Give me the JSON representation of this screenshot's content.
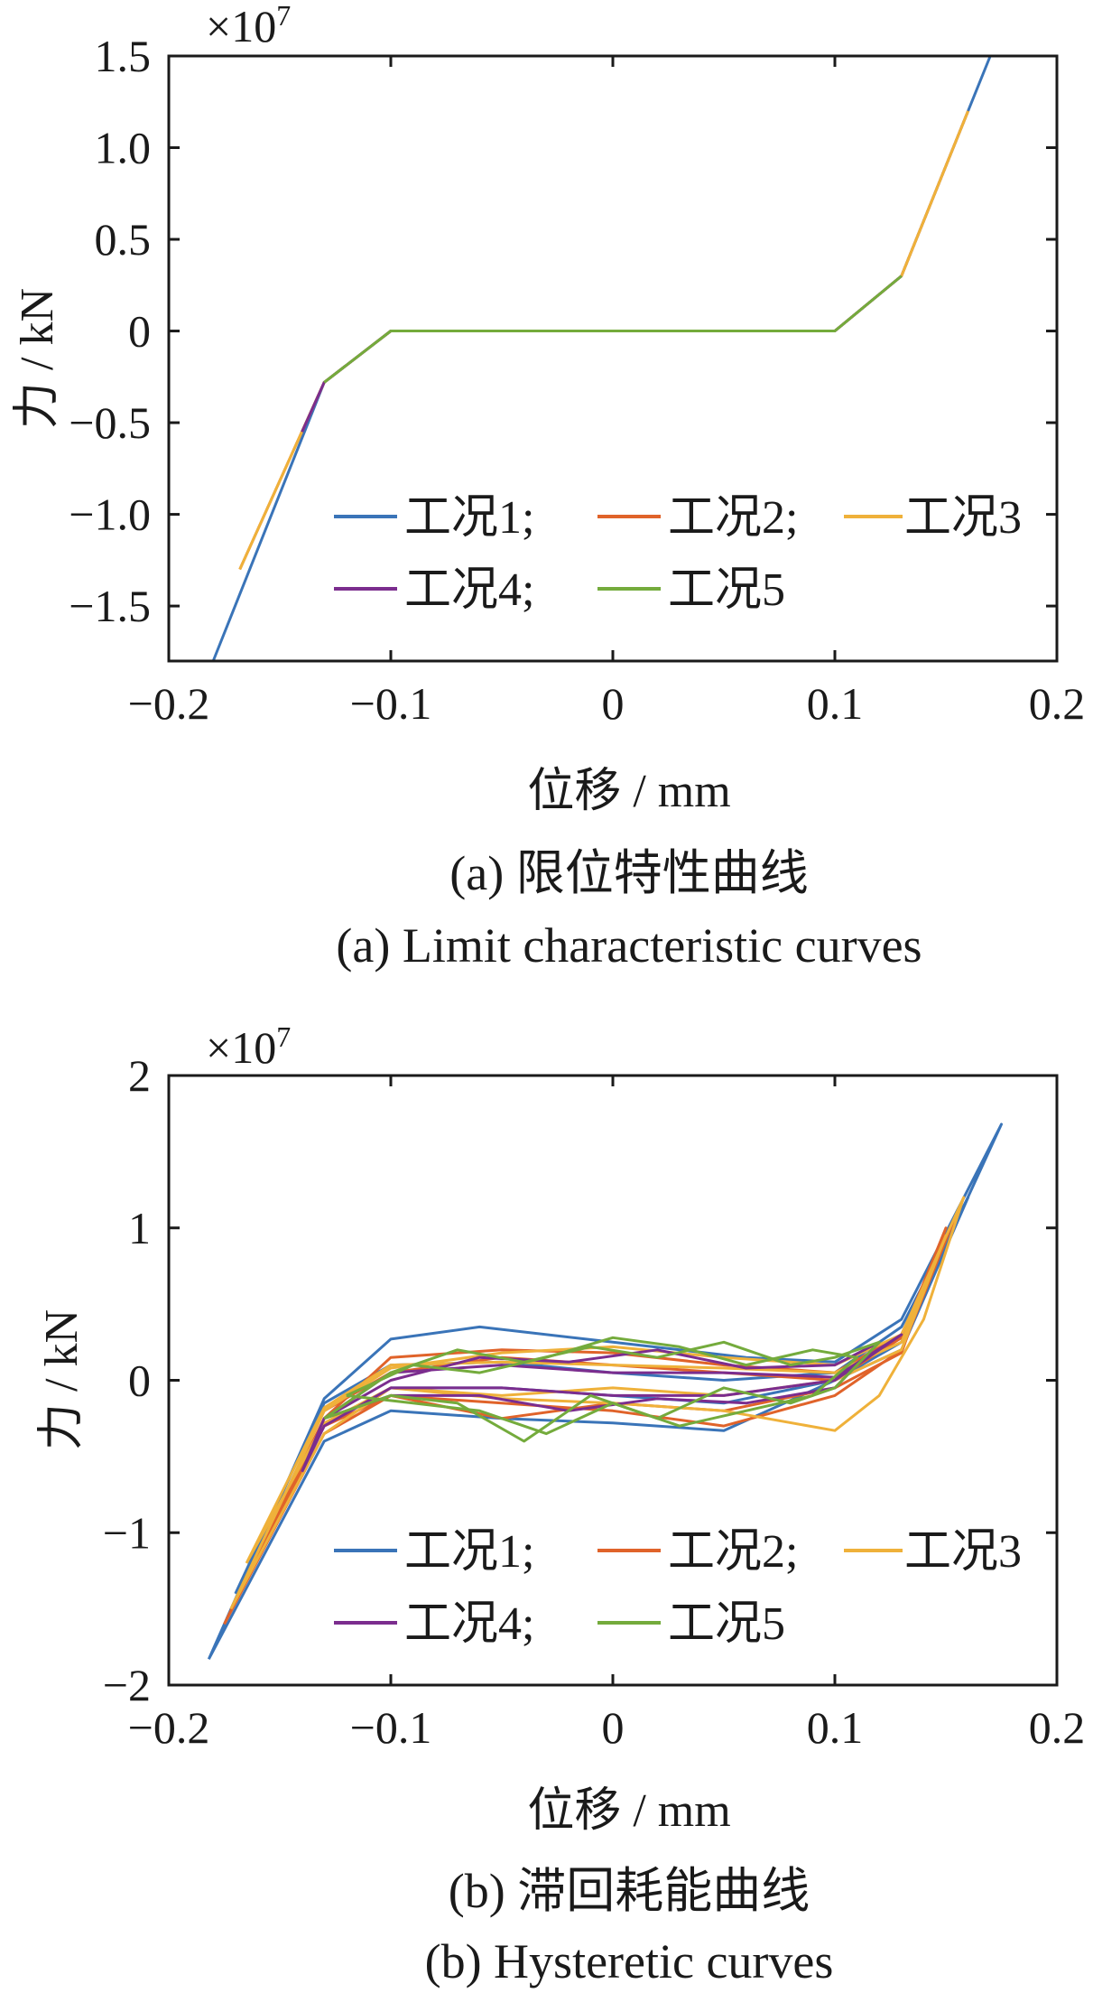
{
  "chart_data": [
    {
      "type": "line",
      "panel": "a",
      "xlabel": "位移 / mm",
      "ylabel": "力 / kN",
      "exponent_label": "×10",
      "exponent_power": "7",
      "xlim": [
        -0.2,
        0.2
      ],
      "ylim": [
        -1.8,
        1.5
      ],
      "x_ticks": [
        "−0.2",
        "−0.1",
        "0",
        "0.1",
        "0.2"
      ],
      "y_ticks": [
        "1.5",
        "1.0",
        "0.5",
        "0",
        "−0.5",
        "−1.0",
        "−1.5"
      ],
      "x_tick_values": [
        -0.2,
        -0.1,
        0,
        0.1,
        0.2
      ],
      "y_tick_values": [
        1.5,
        1.0,
        0.5,
        0,
        -0.5,
        -1.0,
        -1.5
      ],
      "series": [
        {
          "name": "工况1;",
          "color": "#3a74b8",
          "x": [
            -0.18,
            -0.13,
            -0.1,
            0.1,
            0.13,
            0.17
          ],
          "y": [
            -1.8,
            -0.28,
            0,
            0,
            0.3,
            1.5
          ]
        },
        {
          "name": "工况2;",
          "color": "#e0632a",
          "x": [
            -0.168,
            -0.13,
            -0.1,
            0.1,
            0.13,
            0.16
          ],
          "y": [
            -1.3,
            -0.28,
            0,
            0,
            0.3,
            1.2
          ]
        },
        {
          "name": "工况3",
          "color": "#efb13a",
          "x": [
            -0.168,
            -0.13,
            -0.1,
            0.1,
            0.13,
            0.16
          ],
          "y": [
            -1.3,
            -0.28,
            0,
            0,
            0.3,
            1.2
          ]
        },
        {
          "name": "工况4;",
          "color": "#7b2d8e",
          "x": [
            -0.14,
            -0.13,
            -0.1,
            0.1,
            0.13
          ],
          "y": [
            -0.55,
            -0.28,
            0,
            0,
            0.3
          ]
        },
        {
          "name": "工况5",
          "color": "#74ab3c",
          "x": [
            -0.13,
            -0.1,
            0.1,
            0.13
          ],
          "y": [
            -0.28,
            0,
            0,
            0.3
          ]
        }
      ],
      "caption_zh": "(a)  限位特性曲线",
      "caption_en": "(a)  Limit characteristic curves"
    },
    {
      "type": "line",
      "panel": "b",
      "xlabel": "位移 / mm",
      "ylabel": "力 / kN",
      "exponent_label": "×10",
      "exponent_power": "7",
      "xlim": [
        -0.2,
        0.2
      ],
      "ylim": [
        -2,
        2
      ],
      "x_ticks": [
        "−0.2",
        "−0.1",
        "0",
        "0.1",
        "0.2"
      ],
      "y_ticks": [
        "2",
        "1",
        "0",
        "−1",
        "−2"
      ],
      "x_tick_values": [
        -0.2,
        -0.1,
        0,
        0.1,
        0.2
      ],
      "y_tick_values": [
        2,
        1,
        0,
        -1,
        -2
      ],
      "series": [
        {
          "name": "工况1;",
          "color": "#3a74b8",
          "loops": [
            {
              "x": [
                -0.182,
                -0.13,
                -0.1,
                -0.06,
                0.0,
                0.06,
                0.1,
                0.13,
                0.175,
                0.13,
                0.1,
                0.05,
                0.0,
                -0.05,
                -0.1,
                -0.13,
                -0.182
              ],
              "y": [
                -1.83,
                -0.12,
                0.27,
                0.35,
                0.25,
                0.15,
                0.12,
                0.4,
                1.68,
                0.25,
                0.0,
                -0.33,
                -0.28,
                -0.25,
                -0.2,
                -0.4,
                -1.83
              ]
            },
            {
              "x": [
                -0.17,
                -0.13,
                -0.1,
                -0.05,
                0.0,
                0.05,
                0.1,
                0.13,
                0.16,
                0.13,
                0.1,
                0.05,
                0.0,
                -0.05,
                -0.1,
                -0.13,
                -0.17
              ],
              "y": [
                -1.4,
                -0.15,
                0.1,
                0.12,
                0.05,
                0.0,
                0.05,
                0.35,
                1.2,
                0.2,
                0.0,
                -0.15,
                -0.1,
                -0.05,
                -0.05,
                -0.3,
                -1.4
              ]
            }
          ]
        },
        {
          "name": "工况2;",
          "color": "#e0632a",
          "loops": [
            {
              "x": [
                -0.175,
                -0.13,
                -0.1,
                -0.05,
                0.0,
                0.05,
                0.1,
                0.13,
                0.155,
                0.13,
                0.1,
                0.05,
                0.0,
                -0.05,
                -0.1,
                -0.13,
                -0.175
              ],
              "y": [
                -1.6,
                -0.25,
                0.15,
                0.2,
                0.18,
                0.1,
                0.05,
                0.3,
                1.1,
                0.2,
                -0.1,
                -0.3,
                -0.2,
                -0.15,
                -0.1,
                -0.35,
                -1.6
              ]
            },
            {
              "x": [
                -0.17,
                -0.13,
                -0.1,
                -0.05,
                0.0,
                0.05,
                0.1,
                0.13,
                0.15,
                0.13,
                0.1,
                0.05,
                0.0,
                -0.05,
                -0.1,
                -0.13,
                -0.17
              ],
              "y": [
                -1.45,
                -0.2,
                0.05,
                0.15,
                0.1,
                0.05,
                0.0,
                0.28,
                1.0,
                0.18,
                -0.05,
                -0.2,
                -0.15,
                -0.25,
                -0.1,
                -0.3,
                -1.45
              ]
            }
          ]
        },
        {
          "name": "工况3",
          "color": "#efb13a",
          "loops": [
            {
              "x": [
                -0.172,
                -0.13,
                -0.1,
                -0.05,
                0.0,
                0.05,
                0.1,
                0.13,
                0.158,
                0.14,
                0.12,
                0.1,
                0.05,
                0.0,
                -0.05,
                -0.1,
                -0.13,
                -0.172
              ],
              "y": [
                -1.5,
                -0.2,
                0.08,
                0.18,
                0.22,
                0.15,
                0.1,
                0.3,
                1.2,
                0.4,
                -0.1,
                -0.33,
                -0.2,
                -0.15,
                -0.12,
                -0.05,
                -0.35,
                -1.5
              ]
            },
            {
              "x": [
                -0.165,
                -0.13,
                -0.1,
                -0.05,
                0.0,
                0.05,
                0.1,
                0.13,
                0.15,
                0.13,
                0.1,
                0.05,
                0.0,
                -0.05,
                -0.1,
                -0.13,
                -0.165
              ],
              "y": [
                -1.2,
                -0.18,
                0.1,
                0.12,
                0.1,
                0.08,
                0.05,
                0.25,
                0.95,
                0.2,
                0.0,
                -0.1,
                -0.05,
                -0.1,
                -0.05,
                -0.28,
                -1.2
              ]
            }
          ]
        },
        {
          "name": "工况4;",
          "color": "#7b2d8e",
          "loops": [
            {
              "x": [
                -0.14,
                -0.13,
                -0.1,
                -0.05,
                0.0,
                0.05,
                0.1,
                0.13,
                0.1,
                0.05,
                0.0,
                -0.05,
                -0.1,
                -0.13,
                -0.14
              ],
              "y": [
                -0.6,
                -0.25,
                0.05,
                0.1,
                0.05,
                0.05,
                0.02,
                0.3,
                0.0,
                -0.1,
                -0.1,
                -0.05,
                -0.05,
                -0.3,
                -0.6
              ]
            },
            {
              "x": [
                -0.13,
                -0.1,
                -0.06,
                -0.02,
                0.02,
                0.06,
                0.1,
                0.12,
                0.1,
                0.06,
                0.02,
                -0.02,
                -0.06,
                -0.1,
                -0.13
              ],
              "y": [
                -0.25,
                0.0,
                0.15,
                0.12,
                0.2,
                0.08,
                0.1,
                0.25,
                -0.05,
                -0.15,
                -0.12,
                -0.2,
                -0.1,
                -0.1,
                -0.25
              ]
            }
          ]
        },
        {
          "name": "工况5",
          "color": "#74ab3c",
          "loops": [
            {
              "x": [
                -0.13,
                -0.1,
                -0.07,
                -0.04,
                -0.01,
                0.02,
                0.05,
                0.08,
                0.1,
                0.12,
                0.1,
                0.08,
                0.05,
                0.02,
                -0.01,
                -0.04,
                -0.07,
                -0.1,
                -0.13
              ],
              "y": [
                -0.25,
                0.05,
                0.2,
                0.12,
                0.22,
                0.15,
                0.25,
                0.1,
                0.15,
                0.25,
                -0.05,
                -0.15,
                -0.05,
                -0.25,
                -0.1,
                -0.4,
                -0.15,
                -0.1,
                -0.25
              ]
            },
            {
              "x": [
                -0.12,
                -0.09,
                -0.06,
                -0.03,
                0.0,
                0.03,
                0.06,
                0.09,
                0.11,
                0.09,
                0.06,
                0.03,
                0.0,
                -0.03,
                -0.06,
                -0.09,
                -0.12
              ],
              "y": [
                -0.1,
                0.1,
                0.05,
                0.15,
                0.28,
                0.22,
                0.1,
                0.2,
                0.15,
                -0.1,
                -0.2,
                -0.3,
                -0.15,
                -0.35,
                -0.2,
                -0.15,
                -0.1
              ]
            }
          ]
        }
      ],
      "caption_zh": "(b)  滞回耗能曲线",
      "caption_en": "(b)  Hysteretic curves"
    }
  ]
}
